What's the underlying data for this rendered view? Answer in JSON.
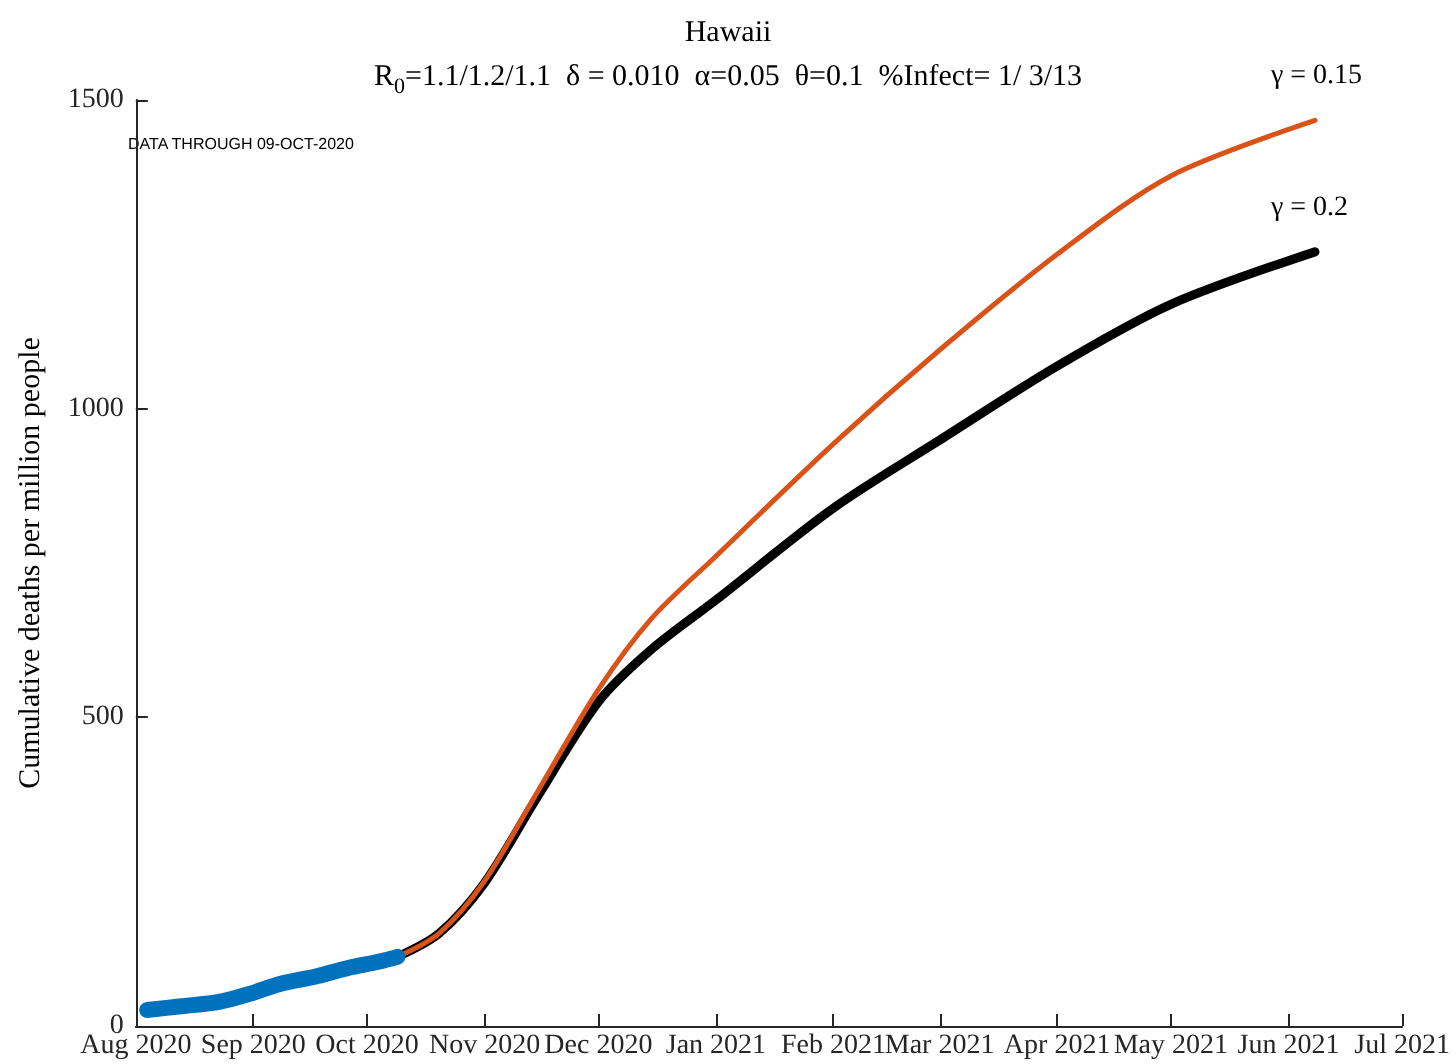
{
  "chart_data": {
    "type": "line",
    "title": "Hawaii",
    "subtitle": "R$_{0}$=1.1/1.2/1.1  δ = 0.010  α=0.05  θ=0.1  %Infect= 1/ 3/13",
    "ylabel": "Cumulative deaths per million people",
    "annotations": [
      "DATA THROUGH 09-OCT-2020"
    ],
    "xlim": [
      "2020-08-01",
      "2021-07-01"
    ],
    "xticks": [
      {
        "value": "2020-08-01",
        "label": "Aug 2020"
      },
      {
        "value": "2020-09-01",
        "label": "Sep 2020"
      },
      {
        "value": "2020-10-01",
        "label": "Oct 2020"
      },
      {
        "value": "2020-11-01",
        "label": "Nov 2020"
      },
      {
        "value": "2020-12-01",
        "label": "Dec 2020"
      },
      {
        "value": "2021-01-01",
        "label": "Jan 2021"
      },
      {
        "value": "2021-02-01",
        "label": "Feb 2021"
      },
      {
        "value": "2021-03-01",
        "label": "Mar 2021"
      },
      {
        "value": "2021-04-01",
        "label": "Apr 2021"
      },
      {
        "value": "2021-05-01",
        "label": "May 2021"
      },
      {
        "value": "2021-06-01",
        "label": "Jun 2021"
      },
      {
        "value": "2021-07-01",
        "label": "Jul 2021"
      }
    ],
    "ylim": [
      0,
      1500
    ],
    "yticks": [
      0,
      500,
      1000,
      1500
    ],
    "grid": false,
    "legend": false,
    "marker": "none",
    "line_style": "solid",
    "series": [
      {
        "name": "γ = 0.2",
        "color": "#000000",
        "x": [
          "2020-10-09",
          "2020-10-20",
          "2020-11-01",
          "2020-11-15",
          "2020-12-01",
          "2020-12-15",
          "2021-01-01",
          "2021-02-01",
          "2021-03-01",
          "2021-04-01",
          "2021-05-01",
          "2021-06-08"
        ],
        "values": [
          112,
          150,
          232,
          372,
          525,
          610,
          690,
          839,
          949,
          1069,
          1169,
          1254
        ]
      },
      {
        "name": "γ = 0.15",
        "color": "#d95319",
        "x": [
          "2020-10-09",
          "2020-10-20",
          "2020-11-01",
          "2020-11-15",
          "2020-12-01",
          "2020-12-15",
          "2021-01-01",
          "2021-02-01",
          "2021-03-01",
          "2021-04-01",
          "2021-05-01",
          "2021-06-08"
        ],
        "values": [
          112,
          150,
          235,
          380,
          545,
          660,
          761,
          943,
          1095,
          1250,
          1377,
          1467
        ]
      },
      {
        "color": "#0072bd",
        "x": [
          "2020-08-04",
          "2020-08-13",
          "2020-08-23",
          "2020-08-31",
          "2020-09-08",
          "2020-09-18",
          "2020-09-26",
          "2020-10-04",
          "2020-10-09"
        ],
        "values": [
          26,
          32,
          39,
          52,
          68,
          81,
          94,
          104,
          112
        ]
      }
    ]
  }
}
